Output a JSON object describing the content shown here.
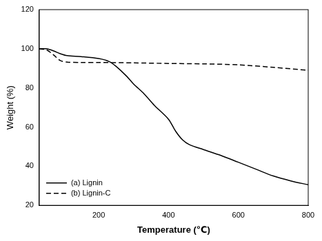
{
  "chart_data": {
    "type": "line",
    "x_label": "Temperature (℃)",
    "y_label": "Weight (%)",
    "xlim": [
      30,
      800
    ],
    "xticks": [
      200,
      400,
      600,
      800
    ],
    "ylim": [
      20,
      120
    ],
    "yticks": [
      20,
      40,
      60,
      80,
      100,
      120
    ],
    "grid": false,
    "legend": "lower left",
    "series": [
      {
        "name": "(a) Lignin",
        "color": "#000000",
        "line_style": "solid",
        "x": [
          30,
          50,
          70,
          90,
          110,
          150,
          200,
          230,
          250,
          280,
          300,
          330,
          360,
          400,
          420,
          440,
          460,
          500,
          550,
          600,
          650,
          700,
          750,
          800
        ],
        "values": [
          100,
          100,
          99,
          97.5,
          96.5,
          96,
          95,
          93.5,
          91,
          86,
          82,
          77,
          71,
          64,
          58,
          53.5,
          51,
          48.5,
          45.5,
          42,
          38.5,
          35,
          32.5,
          30.5
        ]
      },
      {
        "name": "(b) Lignin-C",
        "color": "#000000",
        "line_style": "dashed",
        "x": [
          30,
          50,
          70,
          90,
          110,
          150,
          200,
          300,
          400,
          500,
          600,
          700,
          800
        ],
        "values": [
          100,
          99.5,
          97,
          94,
          93.2,
          93,
          93,
          92.8,
          92.5,
          92.3,
          91.8,
          90.5,
          89
        ]
      }
    ]
  }
}
